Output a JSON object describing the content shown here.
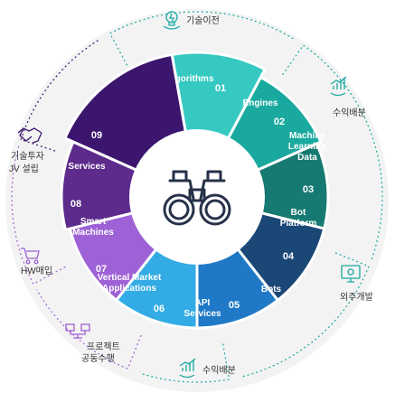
{
  "segments": [
    {
      "num": "01",
      "lines": [
        "Algorithms"
      ],
      "color": "#36c9c2"
    },
    {
      "num": "02",
      "lines": [
        "Engines"
      ],
      "color": "#1aa99e"
    },
    {
      "num": "03",
      "lines": [
        "Machine",
        "Learning",
        "Data"
      ],
      "color": "#167a72"
    },
    {
      "num": "04",
      "lines": [
        "Bot",
        "Platform"
      ],
      "color": "#1b4776"
    },
    {
      "num": "05",
      "lines": [
        "Bots"
      ],
      "color": "#1f79c6"
    },
    {
      "num": "06",
      "lines": [
        "API",
        "Services"
      ],
      "color": "#33abe4"
    },
    {
      "num": "07",
      "lines": [
        "Vertical Market",
        "Applications"
      ],
      "color": "#9e62d6"
    },
    {
      "num": "08",
      "lines": [
        "Smart",
        "Machines"
      ],
      "color": "#5d2b8c"
    },
    {
      "num": "09",
      "lines": [
        "Services"
      ],
      "color": "#3c166e"
    }
  ],
  "outer_labels": {
    "tech_transfer": {
      "lines": [
        "기술이전"
      ],
      "icon": "lightbulb-hand-icon"
    },
    "revenue_share_top": {
      "lines": [
        "수익배분"
      ],
      "icon": "growth-chart-hand-icon"
    },
    "outsourcing": {
      "lines": [
        "외주개발"
      ],
      "icon": "monitor-gear-icon"
    },
    "revenue_share_bottom": {
      "lines": [
        "수익배분"
      ],
      "icon": "growth-chart-hand-icon"
    },
    "joint_project": {
      "lines": [
        "프로젝트",
        "공동수행"
      ],
      "icon": "network-computers-icon"
    },
    "hw_purchase": {
      "lines": [
        "HW매입"
      ],
      "icon": "shopping-cart-icon"
    },
    "investment_jv": {
      "lines": [
        "기술투자",
        "JV 설립"
      ],
      "icon": "handshake-icon"
    }
  },
  "center": {
    "icon": "binoculars-icon"
  },
  "colors": {
    "dashed_ring": "#18a8a0",
    "ring_bg": "#f2f2f2",
    "outer_text": "#333333"
  }
}
